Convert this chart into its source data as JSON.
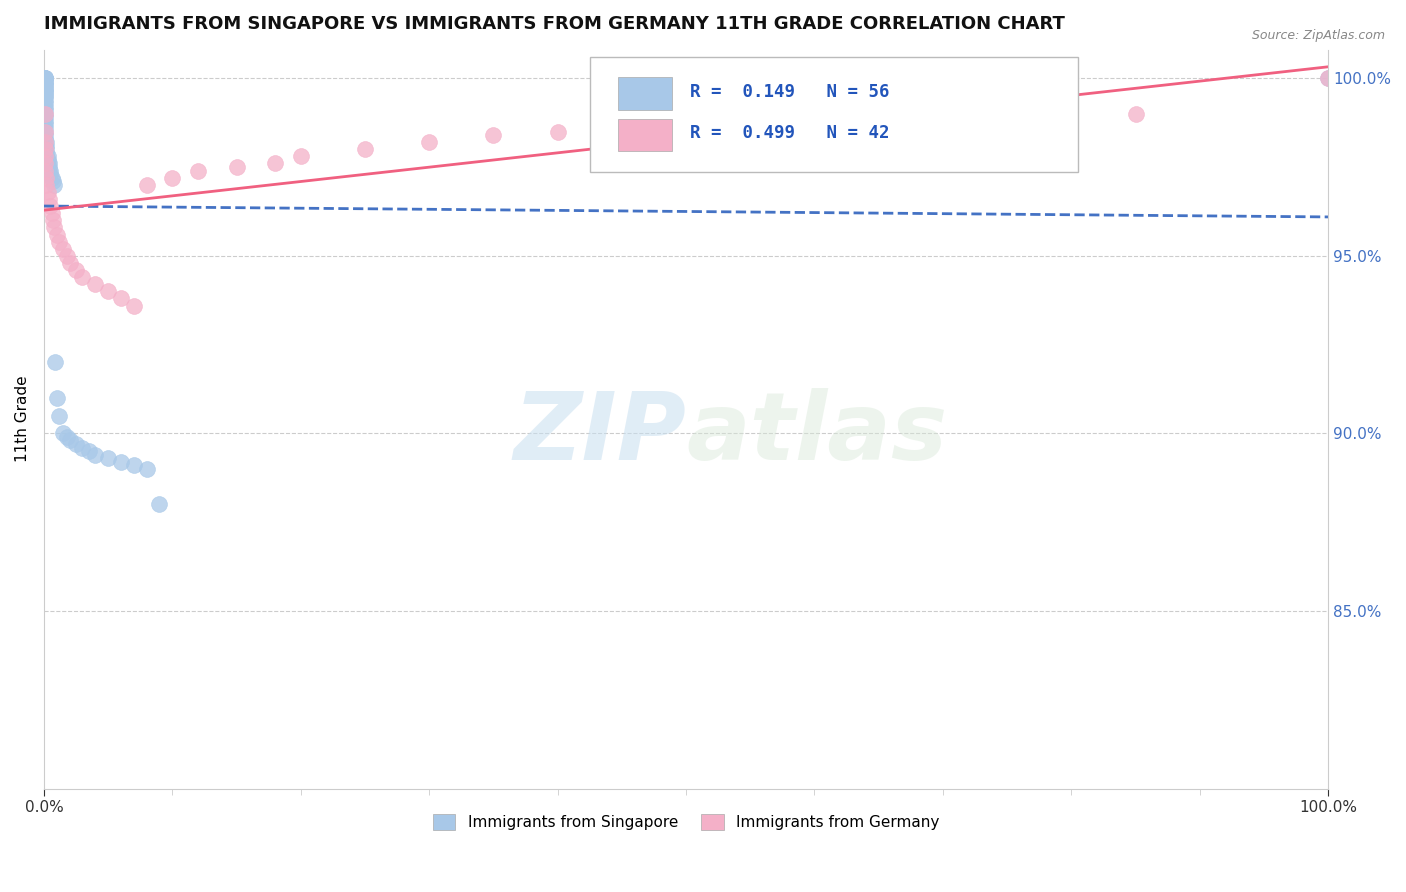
{
  "title": "IMMIGRANTS FROM SINGAPORE VS IMMIGRANTS FROM GERMANY 11TH GRADE CORRELATION CHART",
  "source": "Source: ZipAtlas.com",
  "ylabel_left": "11th Grade",
  "xlim": [
    0.0,
    1.0
  ],
  "ylim": [
    0.8,
    1.008
  ],
  "xtick_labels": [
    "0.0%",
    "100.0%"
  ],
  "ytick_right_labels": [
    "100.0%",
    "95.0%",
    "90.0%",
    "85.0%"
  ],
  "ytick_right_values": [
    1.0,
    0.95,
    0.9,
    0.85
  ],
  "legend_entry1": "R =  0.149   N = 56",
  "legend_entry2": "R =  0.499   N = 42",
  "legend_label1": "Immigrants from Singapore",
  "legend_label2": "Immigrants from Germany",
  "singapore_color": "#a8c8e8",
  "germany_color": "#f4b0c8",
  "singapore_line_color": "#4472c4",
  "germany_line_color": "#f06080",
  "watermark_zip": "ZIP",
  "watermark_atlas": "atlas",
  "background_color": "#ffffff",
  "singapore_x": [
    0.001,
    0.001,
    0.001,
    0.001,
    0.001,
    0.001,
    0.001,
    0.001,
    0.001,
    0.001,
    0.001,
    0.001,
    0.001,
    0.001,
    0.001,
    0.001,
    0.001,
    0.001,
    0.001,
    0.001,
    0.001,
    0.001,
    0.001,
    0.001,
    0.001,
    0.001,
    0.001,
    0.002,
    0.002,
    0.002,
    0.002,
    0.003,
    0.003,
    0.004,
    0.004,
    0.005,
    0.005,
    0.006,
    0.007,
    0.008,
    0.009,
    0.01,
    0.012,
    0.015,
    0.018,
    0.02,
    0.025,
    0.03,
    0.035,
    0.04,
    0.05,
    0.06,
    0.07,
    0.08,
    0.09,
    1.0
  ],
  "singapore_y": [
    1.0,
    1.0,
    1.0,
    1.0,
    1.0,
    0.999,
    0.999,
    0.998,
    0.998,
    0.997,
    0.997,
    0.996,
    0.996,
    0.995,
    0.995,
    0.994,
    0.993,
    0.992,
    0.991,
    0.99,
    0.989,
    0.988,
    0.987,
    0.986,
    0.985,
    0.984,
    0.983,
    0.982,
    0.981,
    0.98,
    0.979,
    0.978,
    0.977,
    0.976,
    0.975,
    0.974,
    0.973,
    0.972,
    0.971,
    0.97,
    0.92,
    0.91,
    0.905,
    0.9,
    0.899,
    0.898,
    0.897,
    0.896,
    0.895,
    0.894,
    0.893,
    0.892,
    0.891,
    0.89,
    0.88,
    1.0
  ],
  "germany_x": [
    0.001,
    0.001,
    0.001,
    0.001,
    0.001,
    0.001,
    0.001,
    0.002,
    0.002,
    0.003,
    0.004,
    0.005,
    0.006,
    0.007,
    0.008,
    0.01,
    0.012,
    0.015,
    0.018,
    0.02,
    0.025,
    0.03,
    0.04,
    0.05,
    0.06,
    0.07,
    0.08,
    0.1,
    0.12,
    0.15,
    0.18,
    0.2,
    0.25,
    0.3,
    0.35,
    0.4,
    0.45,
    0.5,
    0.6,
    0.7,
    0.85,
    1.0
  ],
  "germany_y": [
    0.99,
    0.985,
    0.982,
    0.98,
    0.978,
    0.976,
    0.974,
    0.972,
    0.97,
    0.968,
    0.966,
    0.964,
    0.962,
    0.96,
    0.958,
    0.956,
    0.954,
    0.952,
    0.95,
    0.948,
    0.946,
    0.944,
    0.942,
    0.94,
    0.938,
    0.936,
    0.97,
    0.972,
    0.974,
    0.975,
    0.976,
    0.978,
    0.98,
    0.982,
    0.984,
    0.985,
    0.986,
    0.987,
    0.988,
    0.989,
    0.99,
    1.0
  ]
}
